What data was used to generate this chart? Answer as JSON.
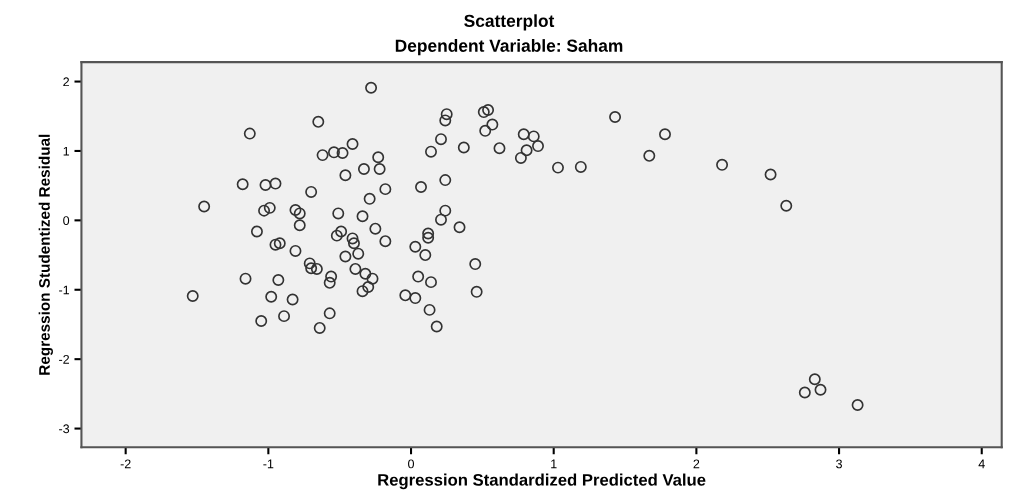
{
  "chart_data": {
    "type": "scatter",
    "title": "Scatterplot",
    "subtitle": "Dependent Variable: Saham",
    "xlabel": "Regression Standardized Predicted Value",
    "ylabel": "Regression Studentized Residual",
    "xlim": [
      -2.31,
      4.14
    ],
    "ylim": [
      -3.27,
      2.28
    ],
    "xticks": [
      -2,
      -1,
      0,
      1,
      2,
      3,
      4
    ],
    "yticks": [
      -3,
      -2,
      -1,
      0,
      1,
      2
    ],
    "grid": false,
    "marker": "circle",
    "series": [
      {
        "color": "#333333",
        "x": [
          -0.28,
          -0.65,
          -1.13,
          -0.41,
          -0.62,
          -0.54,
          -0.48,
          -0.23,
          -0.33,
          -0.22,
          -0.46,
          -1.18,
          -1.02,
          -0.95,
          -0.7,
          -0.29,
          -1.45,
          -1.03,
          -0.99,
          -0.81,
          -0.78,
          -0.51,
          -0.34,
          -0.78,
          -1.08,
          -0.25,
          -0.49,
          -0.52,
          -0.41,
          -0.4,
          -0.95,
          -0.92,
          -0.81,
          -0.37,
          -0.46,
          -0.71,
          -0.7,
          -0.66,
          -0.39,
          -0.32,
          -0.27,
          -0.56,
          -0.57,
          -1.16,
          -0.93,
          -0.3,
          -0.34,
          -1.53,
          -0.98,
          -0.83,
          -0.57,
          -0.89,
          -1.05,
          -0.64,
          0.25,
          0.24,
          0.51,
          0.54,
          0.57,
          0.52,
          0.21,
          1.43,
          1.78,
          0.79,
          0.86,
          0.89,
          0.81,
          0.77,
          0.62,
          0.37,
          0.14,
          1.67,
          1.03,
          1.19,
          0.24,
          0.07,
          -0.18,
          0.24,
          0.21,
          0.34,
          0.12,
          0.12,
          -0.18,
          0.03,
          0.1,
          0.45,
          0.05,
          0.14,
          0.46,
          -0.04,
          0.03,
          0.13,
          0.18,
          2.18,
          2.52,
          2.63,
          2.83,
          2.87,
          2.76,
          3.13
        ],
        "values": [
          1.91,
          1.42,
          1.25,
          1.1,
          0.94,
          0.98,
          0.97,
          0.91,
          0.74,
          0.74,
          0.65,
          0.52,
          0.51,
          0.53,
          0.41,
          0.31,
          0.2,
          0.14,
          0.18,
          0.15,
          0.1,
          0.1,
          0.06,
          -0.07,
          -0.16,
          -0.12,
          -0.16,
          -0.22,
          -0.26,
          -0.33,
          -0.35,
          -0.33,
          -0.44,
          -0.48,
          -0.52,
          -0.62,
          -0.69,
          -0.7,
          -0.7,
          -0.77,
          -0.84,
          -0.81,
          -0.9,
          -0.84,
          -0.86,
          -0.96,
          -1.02,
          -1.09,
          -1.1,
          -1.14,
          -1.34,
          -1.38,
          -1.45,
          -1.55,
          1.53,
          1.44,
          1.56,
          1.59,
          1.38,
          1.29,
          1.17,
          1.49,
          1.24,
          1.24,
          1.21,
          1.07,
          1.01,
          0.9,
          1.04,
          1.05,
          0.99,
          0.93,
          0.76,
          0.77,
          0.58,
          0.48,
          0.45,
          0.14,
          0.01,
          -0.1,
          -0.19,
          -0.25,
          -0.3,
          -0.38,
          -0.5,
          -0.63,
          -0.81,
          -0.89,
          -1.03,
          -1.08,
          -1.12,
          -1.29,
          -1.53,
          0.8,
          0.66,
          0.21,
          -2.29,
          -2.44,
          -2.48,
          -2.66
        ]
      }
    ]
  }
}
